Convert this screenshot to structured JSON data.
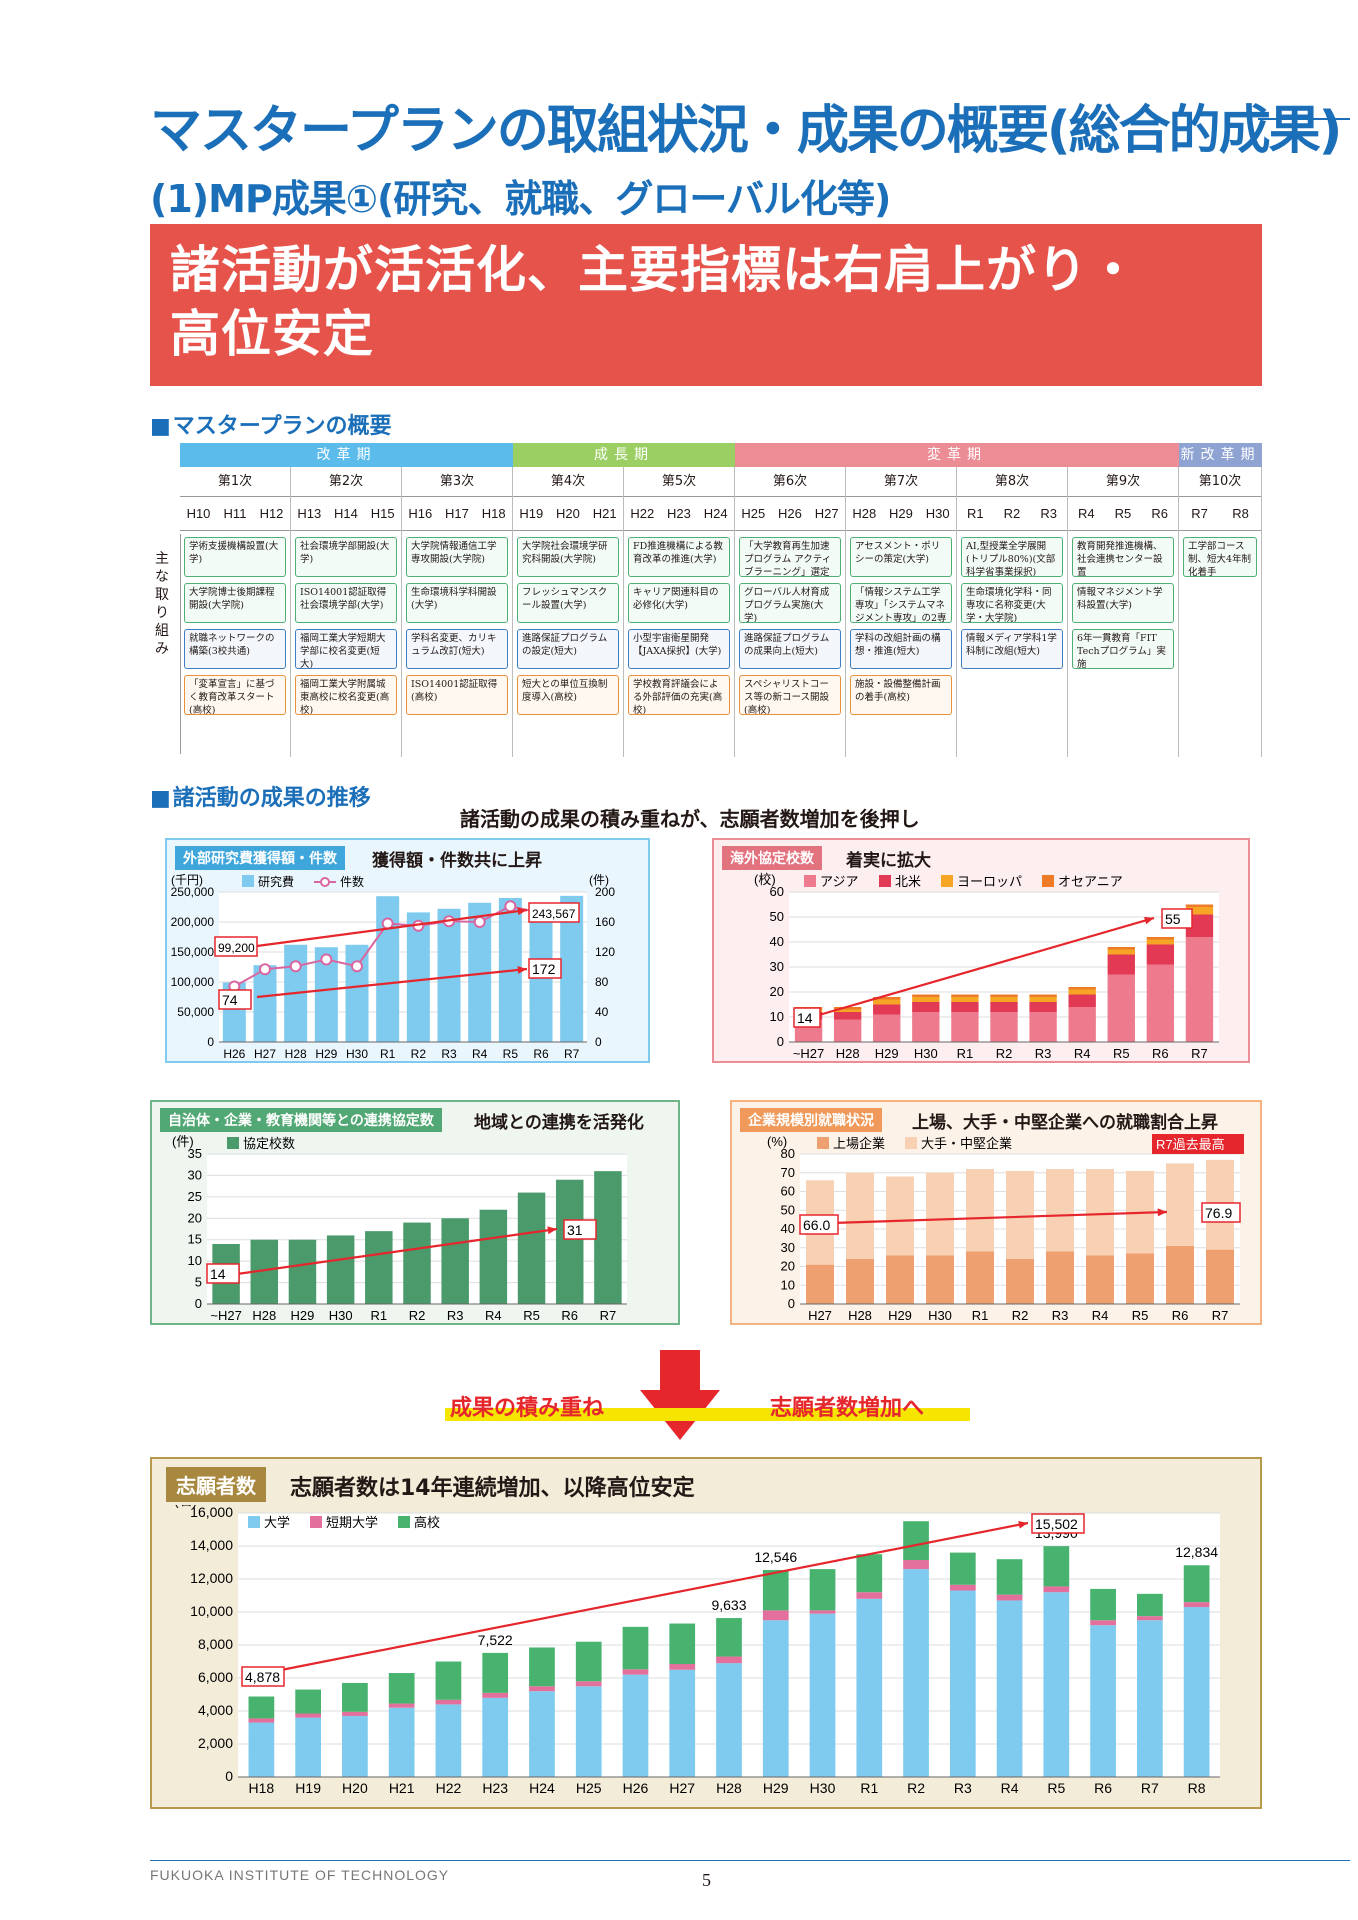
{
  "title": "マスタープランの取組状況・成果の概要(総合的成果)",
  "subtitle": "(1)MP成果①(研究、就職、グローバル化等)",
  "banner": {
    "line1": "諸活動が活活化、主要指標は右肩上がり・",
    "line2": "高位安定"
  },
  "mp": {
    "section": "マスタープランの概要",
    "side_label": "主な取り組み",
    "phases": [
      {
        "name": "改革期",
        "color": "#5bbcec"
      },
      {
        "name": "成長期",
        "color": "#9ccf63"
      },
      {
        "name": "変革期",
        "color": "#ec8d96"
      },
      {
        "name": "新改革期",
        "color": "#8fa3d3"
      }
    ],
    "periods": [
      {
        "name": "第1次",
        "years": [
          "H10",
          "H11",
          "H12"
        ],
        "items": [
          [
            "学術支援機構設置(大学)",
            "green"
          ],
          [
            "大学院博士後期課程開設(大学院)",
            "green"
          ],
          [
            "就職ネットワークの構築(3校共通)",
            "blue"
          ],
          [
            "「変革宣言」に基づく教育改革スタート(高校)",
            "orange"
          ]
        ]
      },
      {
        "name": "第2次",
        "years": [
          "H13",
          "H14",
          "H15"
        ],
        "items": [
          [
            "社会環境学部開設(大学)",
            "green"
          ],
          [
            "ISO14001認証取得社会環境学部(大学)",
            "green"
          ],
          [
            "福岡工業大学短期大学部に校名変更(短大)",
            "blue"
          ],
          [
            "福岡工業大学附属城東高校に校名変更(高校)",
            "orange"
          ]
        ]
      },
      {
        "name": "第3次",
        "years": [
          "H16",
          "H17",
          "H18"
        ],
        "items": [
          [
            "大学院情報通信工学専攻開設(大学院)",
            "green"
          ],
          [
            "生命環境科学科開設(大学)",
            "green"
          ],
          [
            "学科名変更、カリキュラム改訂(短大)",
            "blue"
          ],
          [
            "ISO14001認証取得(高校)",
            "orange"
          ]
        ]
      },
      {
        "name": "第4次",
        "years": [
          "H19",
          "H20",
          "H21"
        ],
        "items": [
          [
            "大学院社会環境学研究科開設(大学院)",
            "green"
          ],
          [
            "フレッシュマンスクール設置(大学)",
            "green"
          ],
          [
            "進路保証プログラムの設定(短大)",
            "blue"
          ],
          [
            "短大との単位互換制度導入(高校)",
            "orange"
          ]
        ]
      },
      {
        "name": "第5次",
        "years": [
          "H22",
          "H23",
          "H24"
        ],
        "items": [
          [
            "FD推進機構による教育改革の推進(大学)",
            "green"
          ],
          [
            "キャリア関連科目の必修化(大学)",
            "green"
          ],
          [
            "小型宇宙衛星開発【JAXA採択】(大学)",
            "blue"
          ],
          [
            "学校教育評議会による外部評価の充実(高校)",
            "orange"
          ]
        ]
      },
      {
        "name": "第6次",
        "years": [
          "H25",
          "H26",
          "H27"
        ],
        "items": [
          [
            "「大学教育再生加速プログラム アクティブラーニング」選定(大学)",
            "green"
          ],
          [
            "グローバル人材育成プログラム実施(大学)",
            "green"
          ],
          [
            "進路保証プログラムの成果向上(短大)",
            "blue"
          ],
          [
            "スペシャリストコース等の新コース開設(高校)",
            "orange"
          ]
        ]
      },
      {
        "name": "第7次",
        "years": [
          "H28",
          "H29",
          "H30"
        ],
        "items": [
          [
            "アセスメント・ポリシーの策定(大学)",
            "green"
          ],
          [
            "「情報システム工学専攻」「システムマネジメント専攻」の2専攻設置(大学院)",
            "green"
          ],
          [
            "学科の改組計画の構想・推進(短大)",
            "blue"
          ],
          [
            "施設・設備整備計画の着手(高校)",
            "orange"
          ]
        ]
      },
      {
        "name": "第8次",
        "years": [
          "R1",
          "R2",
          "R3"
        ],
        "items": [
          [
            "AI,型授業全学展開(トリプル80%)(文部科学省事業採択)",
            "green"
          ],
          [
            "生命環境化学科・同専攻に名称変更(大学・大学院)",
            "green"
          ],
          [
            "情報メディア学科1学科制に改組(短大)",
            "blue"
          ]
        ]
      },
      {
        "name": "第9次",
        "years": [
          "R4",
          "R5",
          "R6"
        ],
        "items": [
          [
            "教育開発推進機構、社会連携センター設置",
            "green"
          ],
          [
            "情報マネジメント学科設置(大学)",
            "green"
          ],
          [
            "6年一貫教育「FIT Techプログラム」実施",
            "green"
          ]
        ]
      },
      {
        "name": "第10次",
        "years": [
          "R7",
          "R8"
        ],
        "items": [
          [
            "工学部コース制、短大4年制化着手",
            "green"
          ]
        ]
      }
    ]
  },
  "results": {
    "section": "諸活動の成果の推移",
    "headline": "諸活動の成果の積み重ねが、志願者数増加を後押し"
  },
  "chart_data": [
    {
      "type": "bar",
      "tag": "外部研究費獲得額・件数",
      "title": "獲得額・件数共に上昇",
      "categories": [
        "H26",
        "H27",
        "H28",
        "H29",
        "H30",
        "R1",
        "R2",
        "R3",
        "R4",
        "R5",
        "R6",
        "R7"
      ],
      "series": [
        {
          "name": "研究費",
          "type": "bar",
          "values": [
            99200,
            128000,
            162000,
            158000,
            162000,
            243000,
            216000,
            222000,
            232000,
            240000,
            228000,
            243567
          ]
        },
        {
          "name": "件数",
          "type": "line",
          "values": [
            74,
            97,
            101,
            110,
            101,
            158,
            155,
            161,
            160,
            181,
            172,
            172
          ]
        }
      ],
      "ylabel_left": "(千円)",
      "ylabel_right": "(件)",
      "ylim_left": [
        0,
        250000
      ],
      "ylim_right": [
        0,
        200
      ],
      "yticks_left": [
        "0",
        "50,000",
        "100,000",
        "150,000",
        "200,000",
        "250,000"
      ],
      "yticks_right": [
        "0",
        "40",
        "80",
        "120",
        "160",
        "200"
      ],
      "callouts": [
        "99,200",
        "74",
        "243,567",
        "172"
      ]
    },
    {
      "type": "bar",
      "stacked": true,
      "tag": "海外協定校数",
      "title": "着実に拡大",
      "categories": [
        "~H27",
        "H28",
        "H29",
        "H30",
        "R1",
        "R2",
        "R3",
        "R4",
        "R5",
        "R6",
        "R7"
      ],
      "series": [
        {
          "name": "アジア",
          "values": [
            9,
            9,
            11,
            12,
            12,
            12,
            12,
            14,
            27,
            31,
            42
          ]
        },
        {
          "name": "北米",
          "values": [
            3,
            3,
            4,
            4,
            4,
            4,
            4,
            5,
            8,
            8,
            9
          ]
        },
        {
          "name": "ヨーロッパ",
          "values": [
            1,
            1,
            2,
            2,
            2,
            2,
            2,
            2,
            2,
            2,
            3
          ]
        },
        {
          "name": "オセアニア",
          "values": [
            1,
            1,
            1,
            1,
            1,
            1,
            1,
            1,
            1,
            1,
            1
          ]
        }
      ],
      "ylabel": "(校)",
      "ylim": [
        0,
        60
      ],
      "yticks": [
        "0",
        "10",
        "20",
        "30",
        "40",
        "50",
        "60"
      ],
      "callouts": [
        "14",
        "55"
      ]
    },
    {
      "type": "bar",
      "tag": "自治体・企業・教育機関等との連携協定数",
      "title": "地域との連携を活発化",
      "categories": [
        "~H27",
        "H28",
        "H29",
        "H30",
        "R1",
        "R2",
        "R3",
        "R4",
        "R5",
        "R6",
        "R7"
      ],
      "series": [
        {
          "name": "協定校数",
          "values": [
            14,
            15,
            15,
            16,
            17,
            19,
            20,
            22,
            26,
            29,
            31
          ]
        }
      ],
      "ylabel": "(件)",
      "ylim": [
        0,
        35
      ],
      "yticks": [
        "0",
        "5",
        "10",
        "15",
        "20",
        "25",
        "30",
        "35"
      ],
      "callouts": [
        "14",
        "31"
      ]
    },
    {
      "type": "bar",
      "stacked": true,
      "tag": "企業規模別就職状況",
      "title": "上場、大手・中堅企業への就職割合上昇",
      "categories": [
        "H27",
        "H28",
        "H29",
        "H30",
        "R1",
        "R2",
        "R3",
        "R4",
        "R5",
        "R6",
        "R7"
      ],
      "series": [
        {
          "name": "上場企業",
          "values": [
            21,
            24,
            26,
            26,
            28,
            24,
            28,
            26,
            27,
            31,
            29
          ]
        },
        {
          "name": "大手・中堅企業",
          "values": [
            45,
            46,
            42,
            44,
            44,
            47,
            44,
            46,
            44,
            44,
            47.9
          ]
        }
      ],
      "ylabel": "(%)",
      "ylim": [
        0,
        80
      ],
      "yticks": [
        "0",
        "10",
        "20",
        "30",
        "40",
        "50",
        "60",
        "70",
        "80"
      ],
      "callouts": [
        "66.0",
        "76.9"
      ],
      "badge": "R7過去最高"
    },
    {
      "type": "bar",
      "stacked": true,
      "tag": "志願者数",
      "title": "志願者数は14年連続増加、以降高位安定",
      "categories": [
        "H18",
        "H19",
        "H20",
        "H21",
        "H22",
        "H23",
        "H24",
        "H25",
        "H26",
        "H27",
        "H28",
        "H29",
        "H30",
        "R1",
        "R2",
        "R3",
        "R4",
        "R5",
        "R6",
        "R7",
        "R8"
      ],
      "series": [
        {
          "name": "大学",
          "values": [
            3300,
            3600,
            3700,
            4200,
            4400,
            4800,
            5200,
            5500,
            6200,
            6500,
            6900,
            9500,
            9900,
            10800,
            12600,
            11300,
            10700,
            11200,
            9200,
            9500,
            10300
          ]
        },
        {
          "name": "短期大学",
          "values": [
            250,
            250,
            250,
            250,
            280,
            300,
            300,
            300,
            330,
            350,
            400,
            600,
            200,
            400,
            550,
            350,
            350,
            350,
            300,
            250,
            300
          ]
        },
        {
          "name": "高校",
          "values": [
            1328,
            1450,
            1750,
            1850,
            2320,
            2422,
            2350,
            2400,
            2570,
            2450,
            2333,
            2446,
            2500,
            2300,
            2352,
            1950,
            2150,
            2440,
            1900,
            1350,
            2234
          ]
        }
      ],
      "ylabel": "(名)",
      "ylim": [
        0,
        16000
      ],
      "yticks": [
        "0",
        "2,000",
        "4,000",
        "6,000",
        "8,000",
        "10,000",
        "12,000",
        "14,000",
        "16,000"
      ],
      "totals": {
        "0": "4,878",
        "5": "7,522",
        "10": "9,633",
        "11": "12,546",
        "14": "15,502",
        "17": "13,990",
        "20": "12,834"
      }
    }
  ],
  "arrow_text": {
    "left": "成果の積み重ね",
    "right": "志願者数増加へ"
  },
  "footer": {
    "school": "FUKUOKA INSTITUTE OF TECHNOLOGY",
    "page": "5"
  },
  "colors": {
    "blue": "#1b6fb9",
    "red": "#e5534b",
    "lightblue": "#7ecbef",
    "pink": "#e3709c",
    "green": "#52a874"
  }
}
